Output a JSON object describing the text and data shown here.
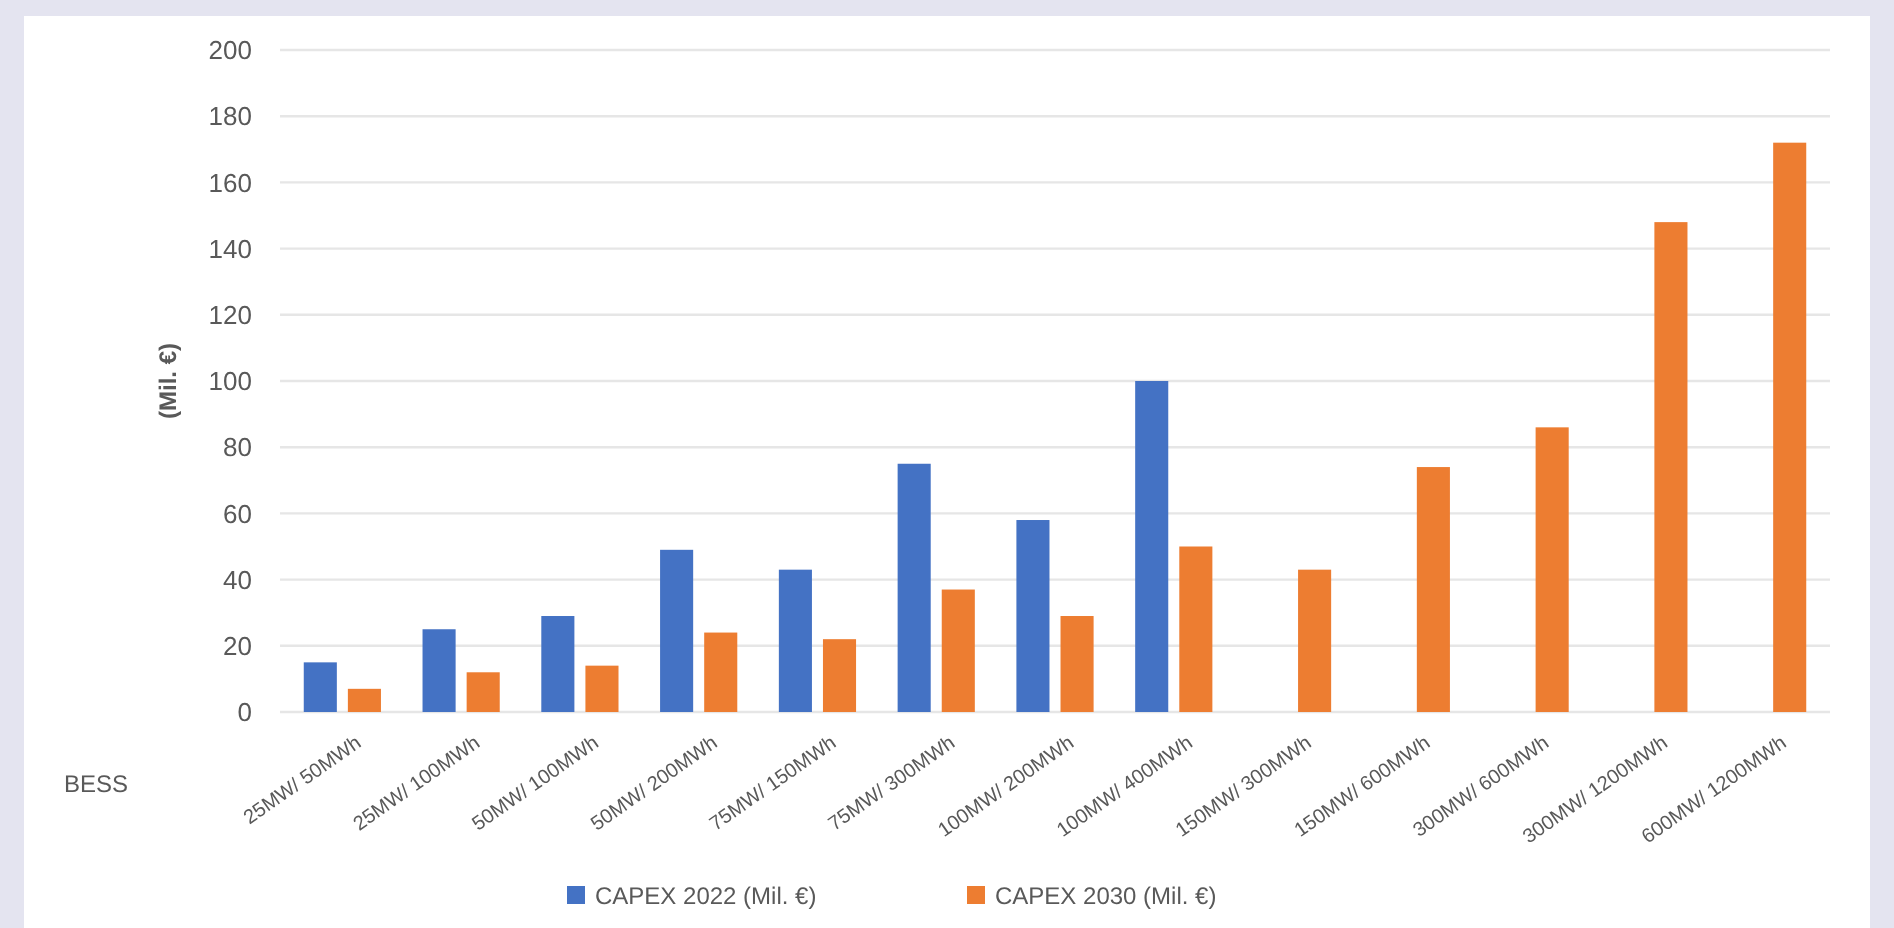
{
  "chart_data": {
    "type": "bar",
    "xlabel": "BESS",
    "ylabel": "(Mil. €)",
    "categories": [
      "25MW/ 50MWh",
      "25MW/ 100MWh",
      "50MW/ 100MWh",
      "50MW/ 200MWh",
      "75MW/ 150MWh",
      "75MW/ 300MWh",
      "100MW/ 200MWh",
      "100MW/ 400MWh",
      "150MW/ 300MWh",
      "150MW/ 600MWh",
      "300MW/ 600MWh",
      "300MW/ 1200MWh",
      "600MW/ 1200MWh"
    ],
    "series": [
      {
        "name": "CAPEX 2022 (Mil. €)",
        "color": "#4472c4",
        "values": [
          15,
          25,
          29,
          49,
          43,
          75,
          58,
          100,
          null,
          null,
          null,
          null,
          null
        ]
      },
      {
        "name": "CAPEX 2030 (Mil. €)",
        "color": "#ed7d31",
        "values": [
          7,
          12,
          14,
          24,
          22,
          37,
          29,
          50,
          43,
          74,
          86,
          148,
          172
        ]
      }
    ],
    "ylim": [
      0,
      200
    ],
    "yticks": [
      0,
      20,
      40,
      60,
      80,
      100,
      120,
      140,
      160,
      180,
      200
    ],
    "grid": "y",
    "legend": "bottom"
  }
}
